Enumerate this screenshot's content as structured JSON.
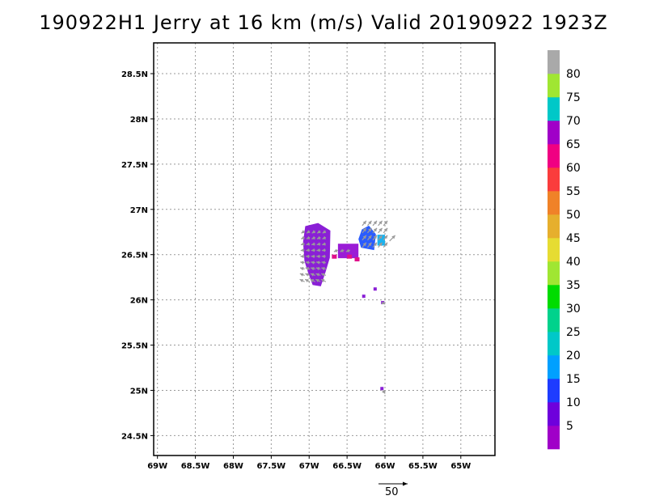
{
  "title": "190922H1 Jerry at 16 km (m/s) Valid 20190922 1923Z",
  "map": {
    "lon_ticks": [
      {
        "value": -69.0,
        "label": "69W"
      },
      {
        "value": -68.5,
        "label": "68.5W"
      },
      {
        "value": -68.0,
        "label": "68W"
      },
      {
        "value": -67.5,
        "label": "67.5W"
      },
      {
        "value": -67.0,
        "label": "67W"
      },
      {
        "value": -66.5,
        "label": "66.5W"
      },
      {
        "value": -66.0,
        "label": "66W"
      },
      {
        "value": -65.5,
        "label": "65.5W"
      },
      {
        "value": -65.0,
        "label": "65W"
      }
    ],
    "lat_ticks": [
      {
        "value": 28.5,
        "label": "28.5N"
      },
      {
        "value": 28.0,
        "label": "28N"
      },
      {
        "value": 27.5,
        "label": "27.5N"
      },
      {
        "value": 27.0,
        "label": "27N"
      },
      {
        "value": 26.5,
        "label": "26.5N"
      },
      {
        "value": 26.0,
        "label": "26N"
      },
      {
        "value": 25.5,
        "label": "25.5N"
      },
      {
        "value": 25.0,
        "label": "25N"
      },
      {
        "value": 24.5,
        "label": "24.5N"
      }
    ],
    "lon_range": [
      -69.05,
      -64.55
    ],
    "lat_range": [
      24.28,
      28.84
    ],
    "grid": true,
    "reference_vector": {
      "value": 50,
      "label": "50"
    }
  },
  "colorbar": {
    "levels": [
      {
        "label": "5",
        "color": "#a000c8"
      },
      {
        "label": "10",
        "color": "#6e00dc"
      },
      {
        "label": "15",
        "color": "#1e3cff"
      },
      {
        "label": "20",
        "color": "#00a0ff"
      },
      {
        "label": "25",
        "color": "#00c8c8"
      },
      {
        "label": "30",
        "color": "#00d28c"
      },
      {
        "label": "35",
        "color": "#00dc00"
      },
      {
        "label": "40",
        "color": "#a0e632"
      },
      {
        "label": "45",
        "color": "#e6dc32"
      },
      {
        "label": "50",
        "color": "#e6af2d"
      },
      {
        "label": "55",
        "color": "#f08228"
      },
      {
        "label": "60",
        "color": "#fa3c3c"
      },
      {
        "label": "65",
        "color": "#f00082"
      },
      {
        "label": "70",
        "color": "#a000c8"
      },
      {
        "label": "75",
        "color": "#00c8c8"
      },
      {
        "label": "80",
        "color": "#a0e632"
      },
      {
        "label": "",
        "color": "#a9a9a9"
      }
    ]
  },
  "wind_field": {
    "units": "m/s",
    "regions": [
      {
        "name": "western blob",
        "color": "#8a1fd6",
        "lon": [
          -67.08,
          -66.72
        ],
        "lat": [
          26.15,
          26.85
        ]
      },
      {
        "name": "central band",
        "color": "#9a1cd6",
        "lon": [
          -66.62,
          -66.35
        ],
        "lat": [
          26.46,
          26.62
        ]
      },
      {
        "name": "eastern blob",
        "color": "#2a5cff",
        "lon": [
          -66.35,
          -66.12
        ],
        "lat": [
          26.55,
          26.82
        ]
      },
      {
        "name": "eastern fringe",
        "color": "#19b3f0",
        "lon": [
          -66.1,
          -66.0
        ],
        "lat": [
          26.6,
          26.72
        ]
      }
    ],
    "isolated_points": [
      {
        "lon": -66.13,
        "lat": 26.12
      },
      {
        "lon": -66.28,
        "lat": 26.04
      },
      {
        "lon": -66.03,
        "lat": 25.97
      },
      {
        "lon": -66.04,
        "lat": 25.02
      }
    ]
  }
}
